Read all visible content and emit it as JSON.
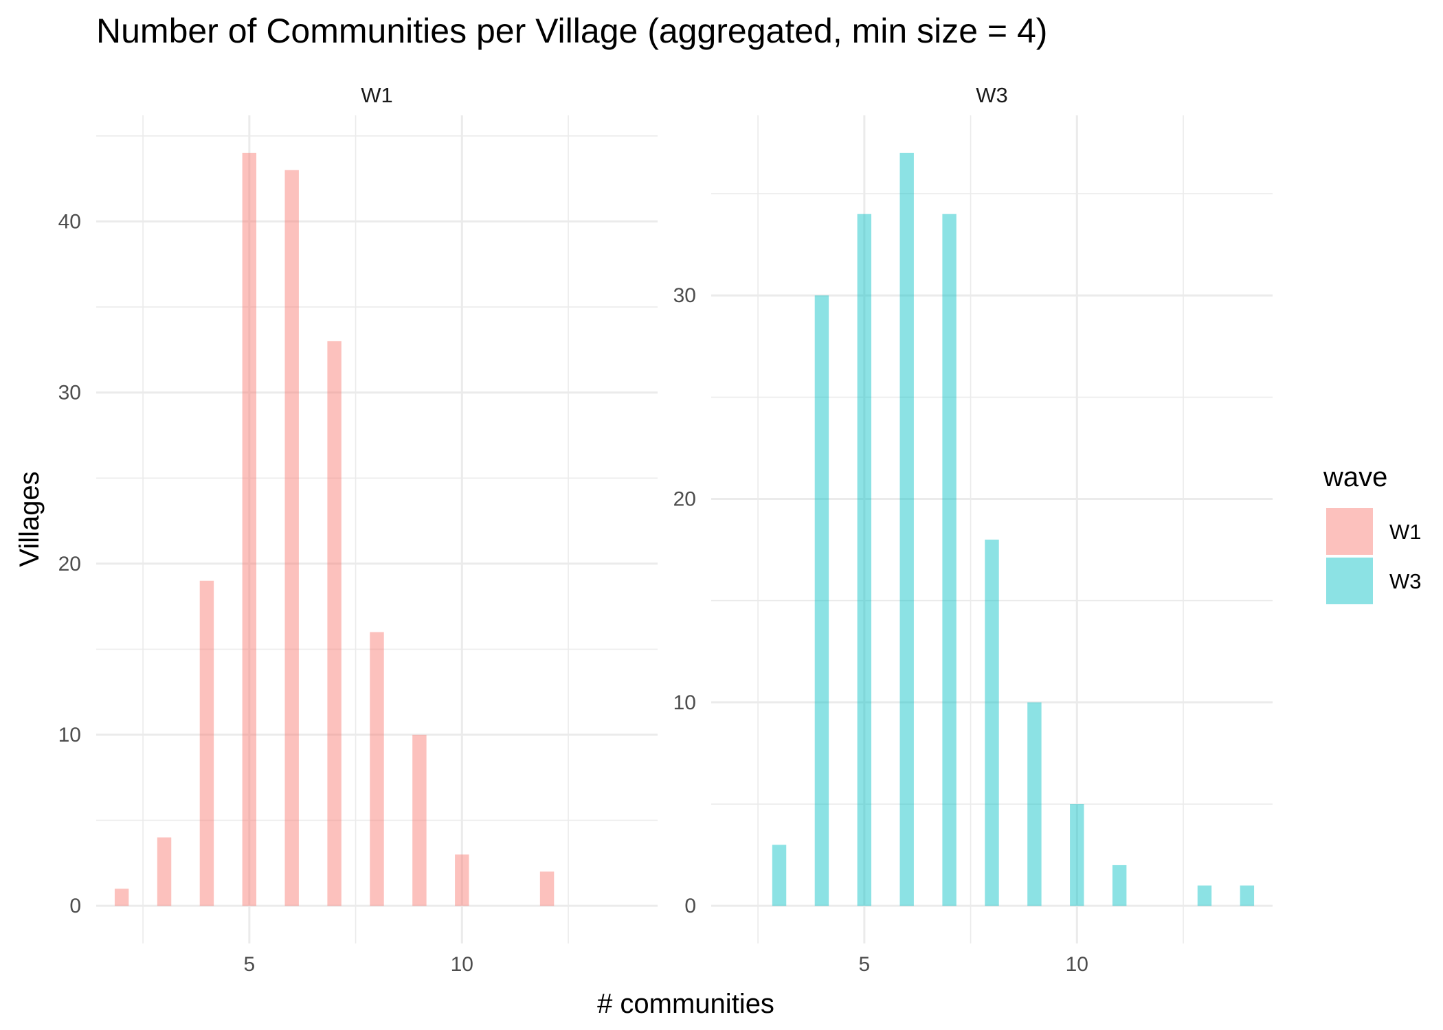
{
  "title": "Number of Communities per Village (aggregated, min size = 4)",
  "x_axis_title": "# communities",
  "y_axis_title": "Villages",
  "legend": {
    "title": "wave",
    "items": [
      {
        "label": "W1",
        "color": "#F8766D"
      },
      {
        "label": "W3",
        "color": "#00BFC4"
      }
    ]
  },
  "chart_data": [
    {
      "type": "bar",
      "panel": "W1",
      "color": "#F8766D",
      "x": [
        2,
        3,
        4,
        5,
        6,
        7,
        8,
        9,
        10,
        12
      ],
      "values": [
        1,
        4,
        19,
        44,
        43,
        33,
        16,
        10,
        3,
        2
      ],
      "xlim": [
        1.4,
        14.6
      ],
      "ylim": [
        -2.2,
        46.2
      ],
      "x_ticks": [
        5,
        10
      ],
      "y_ticks": [
        0,
        10,
        20,
        30,
        40
      ],
      "grid": true
    },
    {
      "type": "bar",
      "panel": "W3",
      "color": "#00BFC4",
      "x": [
        3,
        4,
        5,
        6,
        7,
        8,
        9,
        10,
        11,
        13,
        14
      ],
      "values": [
        3,
        30,
        34,
        37,
        34,
        18,
        10,
        5,
        2,
        1,
        1
      ],
      "xlim": [
        1.4,
        14.6
      ],
      "ylim": [
        -1.85,
        38.85
      ],
      "x_ticks": [
        5,
        10
      ],
      "y_ticks": [
        0,
        10,
        20,
        30
      ],
      "grid": true
    }
  ]
}
